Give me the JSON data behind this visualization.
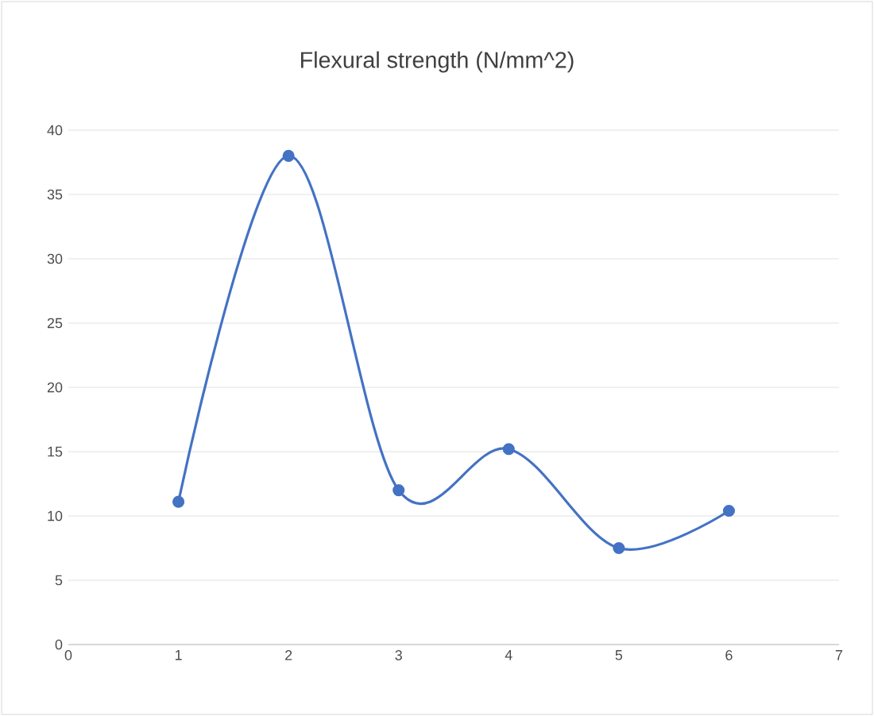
{
  "chart_data": {
    "type": "line",
    "title": "Flexural strength (N/mm^2)",
    "x": [
      1,
      2,
      3,
      4,
      5,
      6
    ],
    "series": [
      {
        "color": "#4472c4",
        "values": [
          11.1,
          38,
          12,
          15.2,
          7.5,
          10.4
        ]
      }
    ],
    "xlim": [
      0,
      7
    ],
    "xticks": [
      0,
      1,
      2,
      3,
      4,
      5,
      6,
      7
    ],
    "ylim": [
      0,
      40
    ],
    "yticks": [
      0,
      5,
      10,
      15,
      20,
      25,
      30,
      35,
      40
    ],
    "grid": "y",
    "marker": "circle",
    "line_style": "solid"
  }
}
